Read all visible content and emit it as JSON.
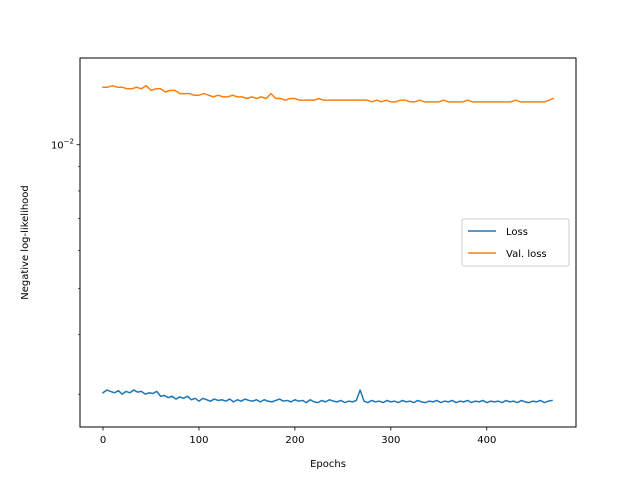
{
  "chart_data": {
    "type": "line",
    "title": "",
    "xlabel": "Epochs",
    "ylabel": "Negative log-likelihood",
    "xlim": [
      -24,
      493
    ],
    "ylim": [
      0.00256,
      0.0152
    ],
    "yscale": "log",
    "x_ticks": [
      0,
      100,
      200,
      300,
      400
    ],
    "y_major_ticks": [
      {
        "value": 0.01,
        "base": "10",
        "exponent": "−2"
      }
    ],
    "y_minor_ticks": [
      0.003,
      0.004,
      0.005,
      0.006,
      0.007,
      0.008,
      0.009
    ],
    "legend_position": "center-right",
    "grid": false,
    "series": [
      {
        "name": "Loss",
        "color": "#1f77b4",
        "anchors": [
          [
            0,
            0.00302
          ],
          [
            4,
            0.00306
          ],
          [
            8,
            0.00304
          ],
          [
            12,
            0.00302
          ],
          [
            16,
            0.00305
          ],
          [
            20,
            0.003
          ],
          [
            24,
            0.00304
          ],
          [
            28,
            0.00302
          ],
          [
            32,
            0.00306
          ],
          [
            36,
            0.00303
          ],
          [
            40,
            0.00304
          ],
          [
            44,
            0.003
          ],
          [
            48,
            0.00302
          ],
          [
            52,
            0.00301
          ],
          [
            56,
            0.00304
          ],
          [
            60,
            0.00297
          ],
          [
            64,
            0.00298
          ],
          [
            68,
            0.00295
          ],
          [
            72,
            0.00297
          ],
          [
            76,
            0.00293
          ],
          [
            80,
            0.00296
          ],
          [
            84,
            0.00294
          ],
          [
            88,
            0.00297
          ],
          [
            92,
            0.00292
          ],
          [
            96,
            0.00294
          ],
          [
            100,
            0.0029
          ],
          [
            104,
            0.00294
          ],
          [
            108,
            0.00292
          ],
          [
            112,
            0.0029
          ],
          [
            116,
            0.00293
          ],
          [
            120,
            0.00291
          ],
          [
            124,
            0.00292
          ],
          [
            128,
            0.0029
          ],
          [
            132,
            0.00293
          ],
          [
            136,
            0.00289
          ],
          [
            140,
            0.00292
          ],
          [
            144,
            0.0029
          ],
          [
            148,
            0.00293
          ],
          [
            152,
            0.00291
          ],
          [
            156,
            0.0029
          ],
          [
            160,
            0.00292
          ],
          [
            164,
            0.00289
          ],
          [
            168,
            0.00292
          ],
          [
            172,
            0.0029
          ],
          [
            176,
            0.00289
          ],
          [
            180,
            0.00291
          ],
          [
            184,
            0.00293
          ],
          [
            188,
            0.0029
          ],
          [
            192,
            0.00291
          ],
          [
            196,
            0.00289
          ],
          [
            200,
            0.00292
          ],
          [
            204,
            0.0029
          ],
          [
            208,
            0.00291
          ],
          [
            212,
            0.00288
          ],
          [
            216,
            0.00292
          ],
          [
            220,
            0.00289
          ],
          [
            224,
            0.00288
          ],
          [
            228,
            0.00291
          ],
          [
            232,
            0.00289
          ],
          [
            236,
            0.00292
          ],
          [
            240,
            0.0029
          ],
          [
            244,
            0.00289
          ],
          [
            248,
            0.00291
          ],
          [
            252,
            0.00288
          ],
          [
            256,
            0.0029
          ],
          [
            260,
            0.00289
          ],
          [
            264,
            0.00291
          ],
          [
            268,
            0.00306
          ],
          [
            272,
            0.0029
          ],
          [
            276,
            0.00288
          ],
          [
            280,
            0.00291
          ],
          [
            284,
            0.00289
          ],
          [
            288,
            0.0029
          ],
          [
            292,
            0.00288
          ],
          [
            296,
            0.00291
          ],
          [
            300,
            0.00289
          ],
          [
            304,
            0.0029
          ],
          [
            308,
            0.00288
          ],
          [
            312,
            0.00291
          ],
          [
            316,
            0.00289
          ],
          [
            320,
            0.0029
          ],
          [
            324,
            0.00288
          ],
          [
            328,
            0.00291
          ],
          [
            332,
            0.00289
          ],
          [
            336,
            0.00288
          ],
          [
            340,
            0.0029
          ],
          [
            344,
            0.00289
          ],
          [
            348,
            0.00291
          ],
          [
            352,
            0.00288
          ],
          [
            356,
            0.0029
          ],
          [
            360,
            0.00289
          ],
          [
            364,
            0.00291
          ],
          [
            368,
            0.00288
          ],
          [
            372,
            0.0029
          ],
          [
            376,
            0.00289
          ],
          [
            380,
            0.00291
          ],
          [
            384,
            0.00288
          ],
          [
            388,
            0.0029
          ],
          [
            392,
            0.00289
          ],
          [
            396,
            0.00291
          ],
          [
            400,
            0.00288
          ],
          [
            404,
            0.0029
          ],
          [
            408,
            0.00289
          ],
          [
            412,
            0.0029
          ],
          [
            416,
            0.00288
          ],
          [
            420,
            0.00291
          ],
          [
            424,
            0.00289
          ],
          [
            428,
            0.0029
          ],
          [
            432,
            0.00288
          ],
          [
            436,
            0.00291
          ],
          [
            440,
            0.00289
          ],
          [
            444,
            0.00288
          ],
          [
            448,
            0.0029
          ],
          [
            452,
            0.00289
          ],
          [
            456,
            0.00291
          ],
          [
            460,
            0.00288
          ],
          [
            464,
            0.0029
          ],
          [
            468,
            0.00291
          ]
        ]
      },
      {
        "name": "Val. loss",
        "color": "#ff7f0e",
        "anchors": [
          [
            0,
            0.0132
          ],
          [
            5,
            0.0132
          ],
          [
            10,
            0.0133
          ],
          [
            15,
            0.0132
          ],
          [
            20,
            0.0132
          ],
          [
            25,
            0.0131
          ],
          [
            30,
            0.0131
          ],
          [
            35,
            0.0132
          ],
          [
            40,
            0.0131
          ],
          [
            45,
            0.0133
          ],
          [
            50,
            0.013
          ],
          [
            55,
            0.0131
          ],
          [
            60,
            0.0131
          ],
          [
            65,
            0.0129
          ],
          [
            70,
            0.013
          ],
          [
            75,
            0.013
          ],
          [
            80,
            0.0128
          ],
          [
            85,
            0.0128
          ],
          [
            90,
            0.0128
          ],
          [
            95,
            0.0127
          ],
          [
            100,
            0.0127
          ],
          [
            105,
            0.0128
          ],
          [
            110,
            0.0127
          ],
          [
            115,
            0.0126
          ],
          [
            120,
            0.0127
          ],
          [
            125,
            0.0126
          ],
          [
            130,
            0.0126
          ],
          [
            135,
            0.0127
          ],
          [
            140,
            0.0126
          ],
          [
            145,
            0.0126
          ],
          [
            150,
            0.0125
          ],
          [
            155,
            0.0126
          ],
          [
            160,
            0.0125
          ],
          [
            165,
            0.0126
          ],
          [
            170,
            0.0125
          ],
          [
            175,
            0.0128
          ],
          [
            180,
            0.0125
          ],
          [
            185,
            0.0125
          ],
          [
            190,
            0.0124
          ],
          [
            195,
            0.0125
          ],
          [
            200,
            0.0125
          ],
          [
            205,
            0.0124
          ],
          [
            210,
            0.0124
          ],
          [
            215,
            0.0124
          ],
          [
            220,
            0.0124
          ],
          [
            225,
            0.0125
          ],
          [
            230,
            0.0124
          ],
          [
            235,
            0.0124
          ],
          [
            240,
            0.0124
          ],
          [
            245,
            0.0124
          ],
          [
            250,
            0.0124
          ],
          [
            255,
            0.0124
          ],
          [
            260,
            0.0124
          ],
          [
            265,
            0.0124
          ],
          [
            270,
            0.0124
          ],
          [
            275,
            0.0124
          ],
          [
            280,
            0.0123
          ],
          [
            285,
            0.0124
          ],
          [
            290,
            0.0123
          ],
          [
            295,
            0.0124
          ],
          [
            300,
            0.0123
          ],
          [
            305,
            0.0123
          ],
          [
            310,
            0.0124
          ],
          [
            315,
            0.0124
          ],
          [
            320,
            0.0123
          ],
          [
            325,
            0.0123
          ],
          [
            330,
            0.0124
          ],
          [
            335,
            0.0123
          ],
          [
            340,
            0.0123
          ],
          [
            345,
            0.0123
          ],
          [
            350,
            0.0123
          ],
          [
            355,
            0.0124
          ],
          [
            360,
            0.0123
          ],
          [
            365,
            0.0123
          ],
          [
            370,
            0.0123
          ],
          [
            375,
            0.0123
          ],
          [
            380,
            0.0124
          ],
          [
            385,
            0.0123
          ],
          [
            390,
            0.0123
          ],
          [
            395,
            0.0123
          ],
          [
            400,
            0.0123
          ],
          [
            405,
            0.0123
          ],
          [
            410,
            0.0123
          ],
          [
            415,
            0.0123
          ],
          [
            420,
            0.0123
          ],
          [
            425,
            0.0123
          ],
          [
            430,
            0.0124
          ],
          [
            435,
            0.0123
          ],
          [
            440,
            0.0123
          ],
          [
            445,
            0.0123
          ],
          [
            450,
            0.0123
          ],
          [
            455,
            0.0123
          ],
          [
            460,
            0.0123
          ],
          [
            465,
            0.0124
          ],
          [
            469,
            0.0125
          ]
        ]
      }
    ]
  }
}
